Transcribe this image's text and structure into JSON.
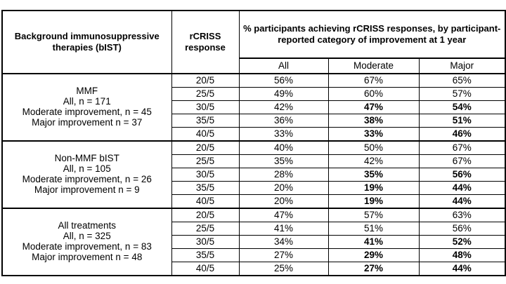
{
  "table": {
    "headers": {
      "bist": "Background immunosuppressive therapies (bIST)",
      "response": "rCRISS response",
      "percent": "% participants achieving rCRISS responses, by participant-reported category of improvement at 1 year"
    },
    "subheaders": [
      "All",
      "Moderate",
      "Major"
    ],
    "groups": [
      {
        "label_lines": [
          "MMF",
          "All, n = 171",
          "Moderate improvement, n = 45",
          "Major improvement n = 37"
        ],
        "rows": [
          {
            "response": "20/5",
            "all": "56%",
            "moderate": "67%",
            "major": "65%",
            "bold": false
          },
          {
            "response": "25/5",
            "all": "49%",
            "moderate": "60%",
            "major": "57%",
            "bold": false
          },
          {
            "response": "30/5",
            "all": "42%",
            "moderate": "47%",
            "major": "54%",
            "bold": true
          },
          {
            "response": "35/5",
            "all": "36%",
            "moderate": "38%",
            "major": "51%",
            "bold": true
          },
          {
            "response": "40/5",
            "all": "33%",
            "moderate": "33%",
            "major": "46%",
            "bold": true
          }
        ]
      },
      {
        "label_lines": [
          "Non-MMF bIST",
          "All, n = 105",
          "Moderate improvement, n = 26",
          "Major improvement n = 9"
        ],
        "rows": [
          {
            "response": "20/5",
            "all": "40%",
            "moderate": "50%",
            "major": "67%",
            "bold": false
          },
          {
            "response": "25/5",
            "all": "35%",
            "moderate": "42%",
            "major": "67%",
            "bold": false
          },
          {
            "response": "30/5",
            "all": "28%",
            "moderate": "35%",
            "major": "56%",
            "bold": true
          },
          {
            "response": "35/5",
            "all": "20%",
            "moderate": "19%",
            "major": "44%",
            "bold": true
          },
          {
            "response": "40/5",
            "all": "20%",
            "moderate": "19%",
            "major": "44%",
            "bold": true
          }
        ]
      },
      {
        "label_lines": [
          "All treatments",
          "All, n = 325",
          "Moderate improvement, n = 83",
          "Major improvement n = 48"
        ],
        "rows": [
          {
            "response": "20/5",
            "all": "47%",
            "moderate": "57%",
            "major": "63%",
            "bold": false
          },
          {
            "response": "25/5",
            "all": "41%",
            "moderate": "51%",
            "major": "56%",
            "bold": false
          },
          {
            "response": "30/5",
            "all": "34%",
            "moderate": "41%",
            "major": "52%",
            "bold": true
          },
          {
            "response": "35/5",
            "all": "27%",
            "moderate": "29%",
            "major": "48%",
            "bold": true
          },
          {
            "response": "40/5",
            "all": "25%",
            "moderate": "27%",
            "major": "44%",
            "bold": true
          }
        ]
      }
    ],
    "colors": {
      "border": "#000000",
      "text": "#000000",
      "background": "#ffffff"
    }
  }
}
